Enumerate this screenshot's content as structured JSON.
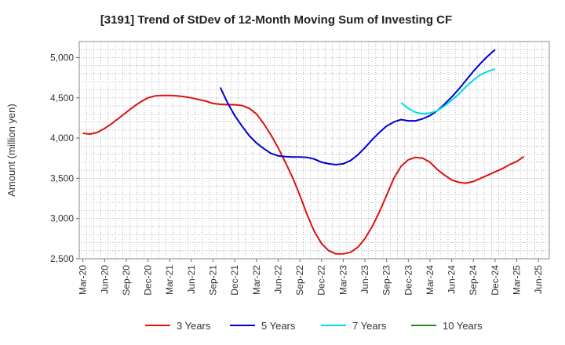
{
  "chart_data": {
    "type": "line",
    "title": "[3191]  Trend of StDev of 12-Month Moving Sum of Investing CF",
    "xlabel": "",
    "ylabel": "Amount (million yen)",
    "ylim": [
      2500,
      5200
    ],
    "yticks": [
      2500,
      3000,
      3500,
      4000,
      4500,
      5000
    ],
    "ytick_labels": [
      "2,500",
      "3,000",
      "3,500",
      "4,000",
      "4,500",
      "5,000"
    ],
    "x_ticks": [
      "Mar-20",
      "Jun-20",
      "Sep-20",
      "Dec-20",
      "Mar-21",
      "Jun-21",
      "Sep-21",
      "Dec-21",
      "Mar-22",
      "Jun-22",
      "Sep-22",
      "Dec-22",
      "Mar-23",
      "Jun-23",
      "Sep-23",
      "Dec-23",
      "Mar-24",
      "Jun-24",
      "Sep-24",
      "Dec-24",
      "Mar-25",
      "Jun-25"
    ],
    "x_start": "2020-03",
    "grid": true,
    "legend_position": "bottom",
    "series": [
      {
        "name": "3 Years",
        "color": "#dd1111",
        "start": "2020-03",
        "values": [
          4060,
          4050,
          4070,
          4120,
          4180,
          4250,
          4320,
          4390,
          4450,
          4500,
          4525,
          4530,
          4530,
          4525,
          4515,
          4500,
          4480,
          4460,
          4430,
          4420,
          4415,
          4415,
          4405,
          4370,
          4300,
          4180,
          4040,
          3880,
          3700,
          3510,
          3290,
          3050,
          2840,
          2690,
          2600,
          2560,
          2560,
          2580,
          2640,
          2750,
          2900,
          3080,
          3290,
          3500,
          3650,
          3730,
          3760,
          3750,
          3700,
          3610,
          3540,
          3480,
          3450,
          3440,
          3460,
          3500,
          3540,
          3580,
          3620,
          3670,
          3710,
          3770
        ]
      },
      {
        "name": "5 Years",
        "color": "#0000cc",
        "start": "2021-10",
        "values": [
          4630,
          4440,
          4280,
          4150,
          4030,
          3940,
          3870,
          3810,
          3780,
          3770,
          3765,
          3765,
          3760,
          3740,
          3700,
          3680,
          3670,
          3680,
          3720,
          3790,
          3880,
          3980,
          4070,
          4150,
          4200,
          4230,
          4215,
          4215,
          4240,
          4280,
          4340,
          4420,
          4510,
          4610,
          4720,
          4830,
          4930,
          5020,
          5100
        ]
      },
      {
        "name": "7 Years",
        "color": "#00dddd",
        "start": "2023-11",
        "values": [
          4440,
          4370,
          4320,
          4300,
          4310,
          4340,
          4400,
          4470,
          4550,
          4640,
          4720,
          4790,
          4830,
          4860
        ]
      },
      {
        "name": "10 Years",
        "color": "#228b22",
        "start": "2020-03",
        "values": []
      }
    ]
  }
}
